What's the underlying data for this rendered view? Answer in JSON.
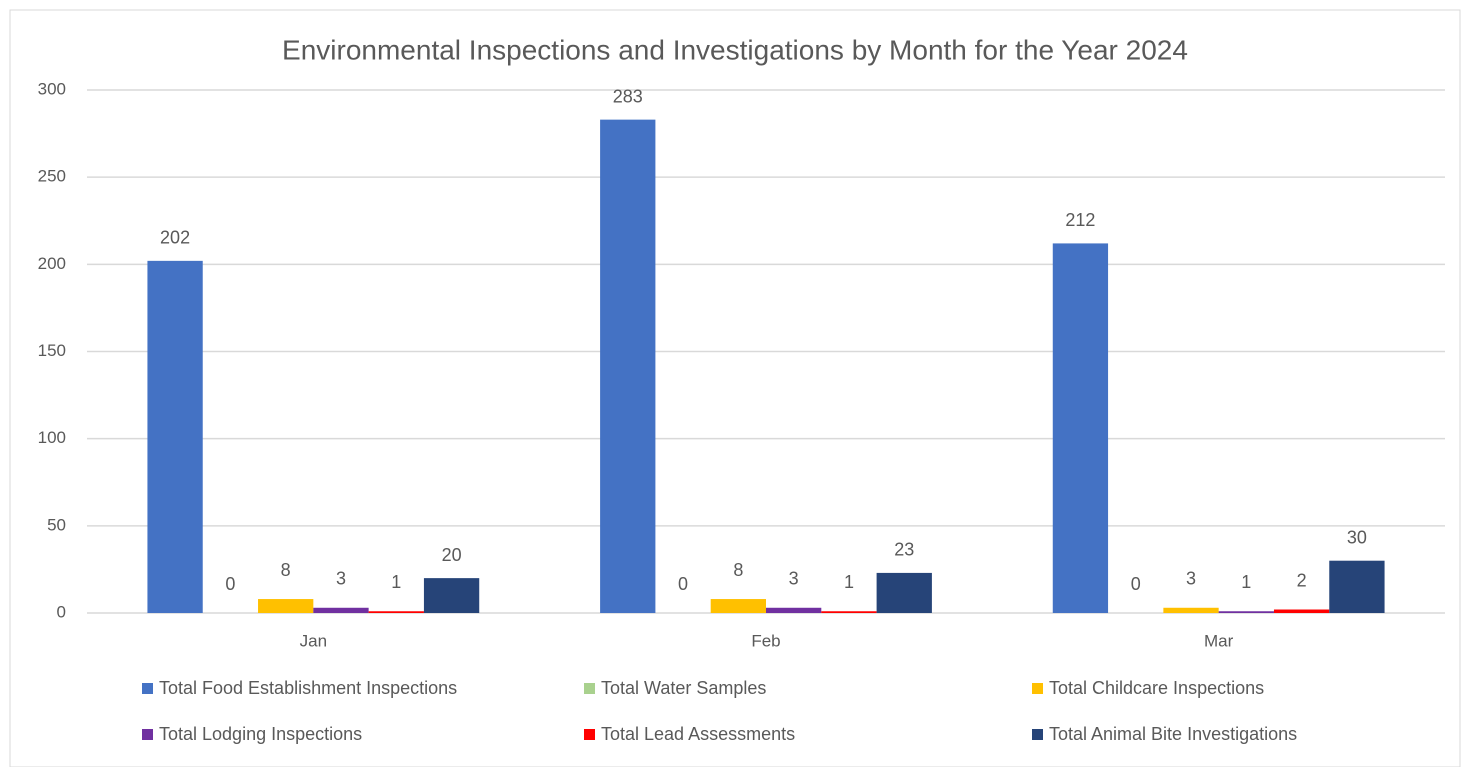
{
  "chart_data": {
    "type": "bar",
    "title": "Environmental Inspections and Investigations by Month for the Year 2024",
    "categories": [
      "Jan",
      "Feb",
      "Mar"
    ],
    "series": [
      {
        "name": "Total Food Establishment Inspections",
        "color": "#4472c4",
        "values": [
          202,
          283,
          212
        ]
      },
      {
        "name": "Total Water Samples",
        "color": "#a9d18e",
        "values": [
          0,
          0,
          0
        ]
      },
      {
        "name": "Total Childcare Inspections",
        "color": "#ffc000",
        "values": [
          8,
          8,
          3
        ]
      },
      {
        "name": "Total Lodging Inspections",
        "color": "#7030a0",
        "values": [
          3,
          3,
          1
        ]
      },
      {
        "name": "Total Lead Assessments",
        "color": "#ff0000",
        "values": [
          1,
          1,
          2
        ]
      },
      {
        "name": "Total Animal Bite Investigations",
        "color": "#264478",
        "values": [
          20,
          23,
          30
        ]
      }
    ],
    "ylim": [
      0,
      300
    ],
    "yticks": [
      0,
      50,
      100,
      150,
      200,
      250,
      300
    ],
    "grid": true,
    "legend": "bottom"
  }
}
